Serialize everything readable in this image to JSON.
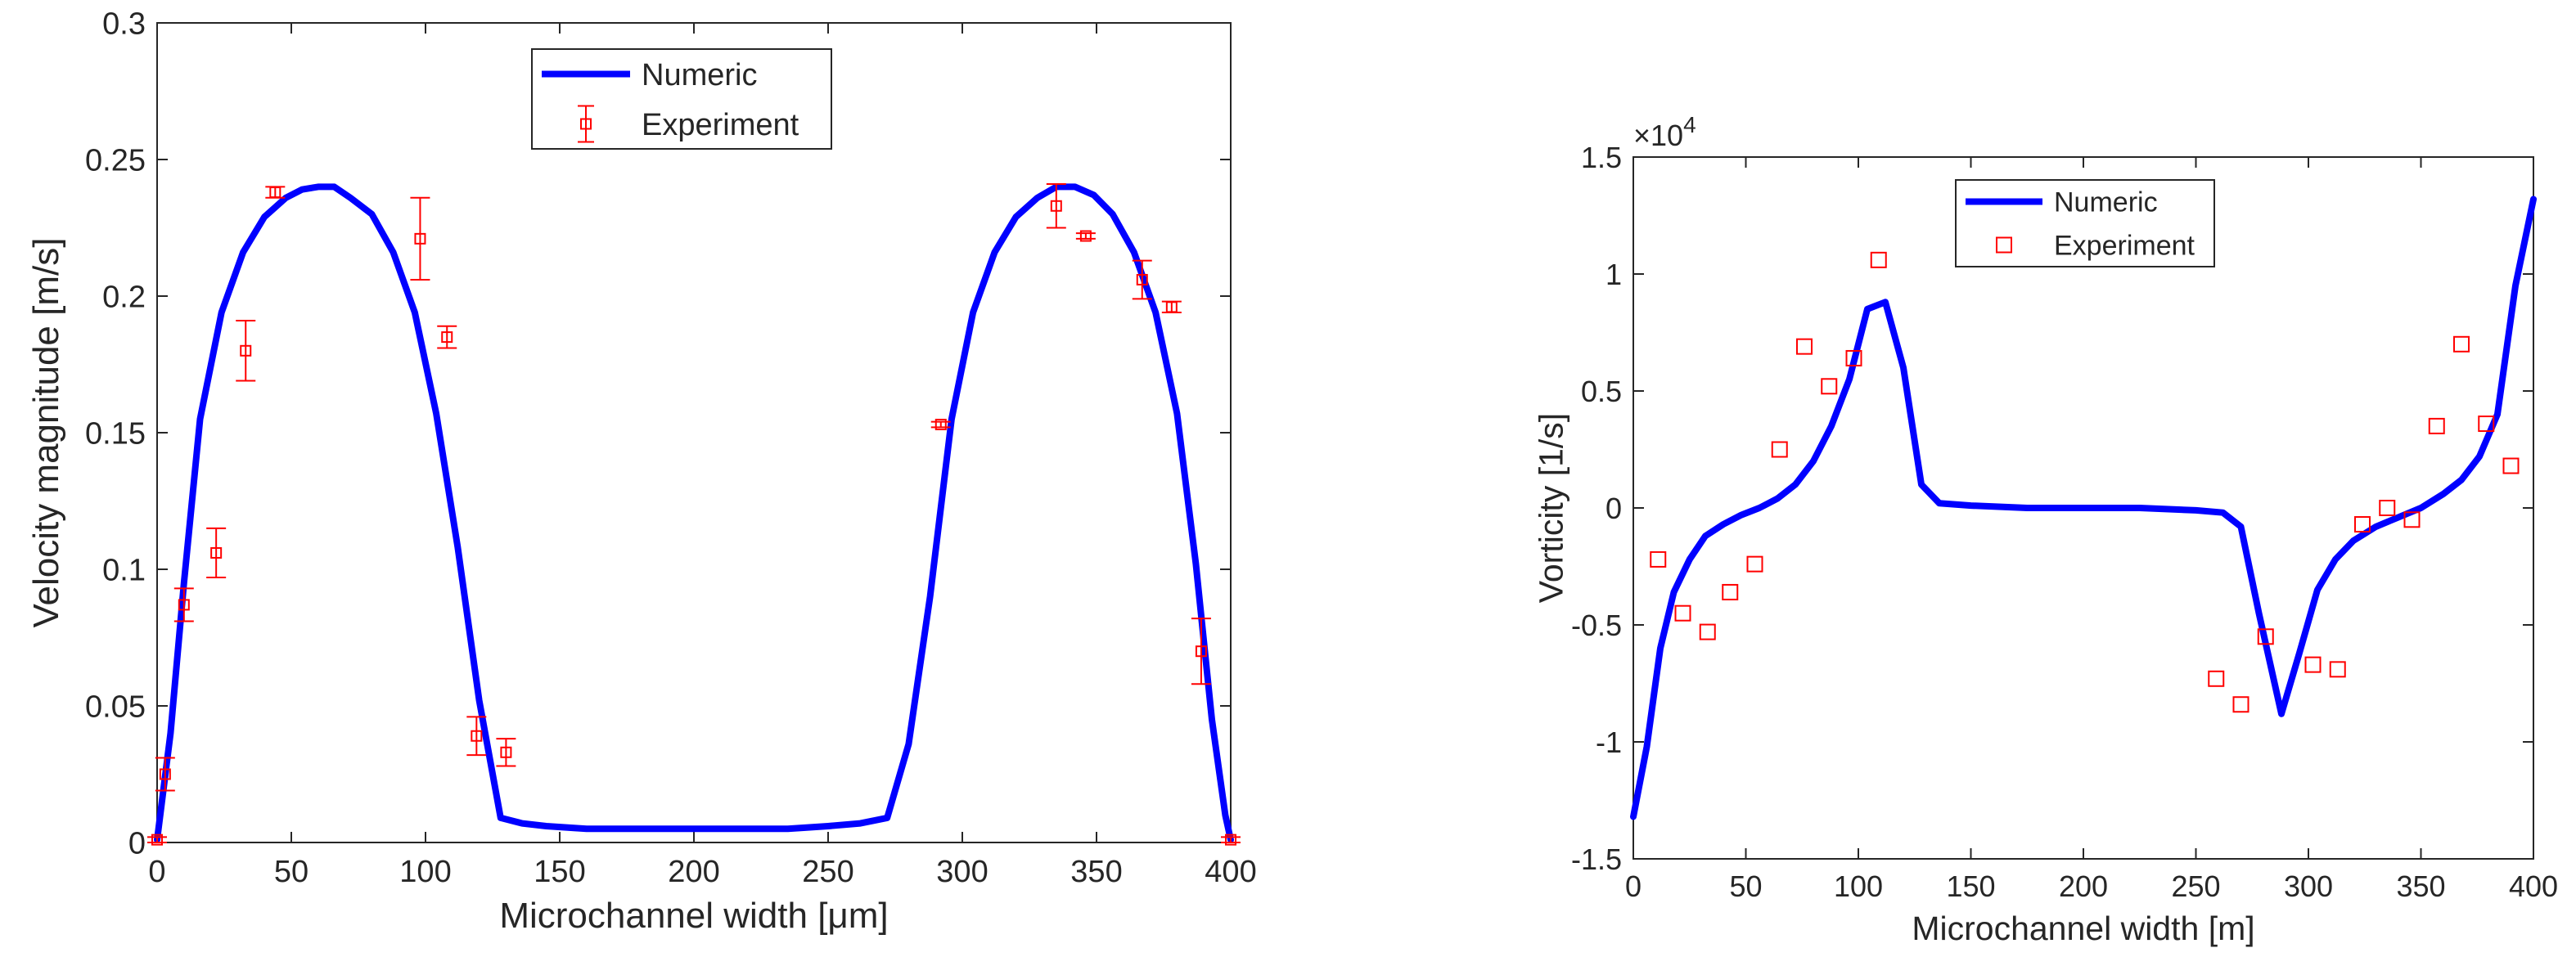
{
  "chart_data": [
    {
      "type": "line",
      "xlabel": "Microchannel width [μm]",
      "ylabel": "Velocity magnitude [m/s]",
      "xlim": [
        0,
        400
      ],
      "ylim": [
        0,
        0.3
      ],
      "xticks": [
        0,
        50,
        100,
        150,
        200,
        250,
        300,
        350,
        400
      ],
      "yticks": [
        0,
        0.05,
        0.1,
        0.15,
        0.2,
        0.25,
        0.3
      ],
      "xtick_labels": [
        "0",
        "50",
        "100",
        "150",
        "200",
        "250",
        "300",
        "350",
        "400"
      ],
      "ytick_labels": [
        "0",
        "0.05",
        "0.1",
        "0.15",
        "0.2",
        "0.25",
        "0.3"
      ],
      "legend": {
        "position": "top-center",
        "entries": [
          "Numeric",
          "Experiment"
        ]
      },
      "series": [
        {
          "name": "Numeric",
          "kind": "line",
          "color": "#0000ff",
          "x": [
            0,
            5,
            10,
            16,
            24,
            32,
            40,
            48,
            54,
            60,
            66,
            72,
            80,
            88,
            96,
            104,
            112,
            120,
            128,
            136,
            145,
            160,
            175,
            190,
            205,
            220,
            235,
            250,
            262,
            272,
            280,
            288,
            296,
            304,
            312,
            320,
            328,
            335,
            342,
            349,
            356,
            364,
            372,
            380,
            387,
            393,
            398,
            400
          ],
          "y": [
            0.001,
            0.04,
            0.095,
            0.155,
            0.194,
            0.216,
            0.229,
            0.236,
            0.239,
            0.24,
            0.24,
            0.236,
            0.23,
            0.216,
            0.194,
            0.157,
            0.108,
            0.052,
            0.009,
            0.007,
            0.006,
            0.005,
            0.005,
            0.005,
            0.005,
            0.005,
            0.005,
            0.006,
            0.007,
            0.009,
            0.036,
            0.09,
            0.155,
            0.194,
            0.216,
            0.229,
            0.236,
            0.24,
            0.24,
            0.237,
            0.23,
            0.216,
            0.194,
            0.157,
            0.102,
            0.045,
            0.01,
            0.001
          ]
        },
        {
          "name": "Experiment",
          "kind": "errorbar",
          "color": "#ff0000",
          "x": [
            0,
            3,
            10,
            22,
            33,
            44,
            98,
            108,
            119,
            130,
            292,
            335,
            346,
            367,
            378,
            389,
            400
          ],
          "y": [
            0.001,
            0.025,
            0.087,
            0.106,
            0.18,
            0.238,
            0.221,
            0.185,
            0.039,
            0.033,
            0.153,
            0.233,
            0.222,
            0.206,
            0.196,
            0.07,
            0.001
          ],
          "err": [
            0.001,
            0.006,
            0.006,
            0.009,
            0.011,
            0.002,
            0.015,
            0.004,
            0.007,
            0.005,
            0.001,
            0.008,
            0.001,
            0.007,
            0.002,
            0.012,
            0.001
          ]
        }
      ]
    },
    {
      "type": "line",
      "xlabel": "Microchannel width [m]",
      "ylabel": "Vorticity [1/s]",
      "xlim": [
        0,
        400
      ],
      "ylim": [
        -1.5,
        1.5
      ],
      "exponent_label": "×10",
      "exponent_power": "4",
      "xticks": [
        0,
        50,
        100,
        150,
        200,
        250,
        300,
        350,
        400
      ],
      "yticks": [
        -1.5,
        -1,
        -0.5,
        0,
        0.5,
        1,
        1.5
      ],
      "xtick_labels": [
        "0",
        "50",
        "100",
        "150",
        "200",
        "250",
        "300",
        "350",
        "400"
      ],
      "ytick_labels": [
        "-1.5",
        "-1",
        "-0.5",
        "0",
        "0.5",
        "1",
        "1.5"
      ],
      "legend": {
        "position": "top-center",
        "entries": [
          "Numeric",
          "Experiment"
        ]
      },
      "series": [
        {
          "name": "Numeric",
          "kind": "line",
          "color": "#0000ff",
          "x": [
            0,
            6,
            12,
            18,
            25,
            32,
            40,
            48,
            56,
            64,
            72,
            80,
            88,
            96,
            104,
            112,
            120,
            128,
            136,
            150,
            175,
            200,
            225,
            250,
            262,
            270,
            278,
            288,
            296,
            304,
            312,
            320,
            330,
            340,
            350,
            360,
            368,
            376,
            384,
            392,
            400
          ],
          "y": [
            -1.32,
            -1.02,
            -0.6,
            -0.36,
            -0.22,
            -0.12,
            -0.07,
            -0.03,
            0.0,
            0.04,
            0.1,
            0.2,
            0.35,
            0.55,
            0.85,
            0.88,
            0.6,
            0.1,
            0.02,
            0.01,
            0.0,
            0.0,
            0.0,
            -0.01,
            -0.02,
            -0.08,
            -0.45,
            -0.88,
            -0.62,
            -0.35,
            -0.22,
            -0.14,
            -0.08,
            -0.04,
            0.0,
            0.06,
            0.12,
            0.22,
            0.4,
            0.95,
            1.32
          ]
        },
        {
          "name": "Experiment",
          "kind": "marker",
          "color": "#ff0000",
          "x": [
            11,
            22,
            33,
            43,
            54,
            65,
            76,
            87,
            98,
            109,
            259,
            270,
            281,
            302,
            313,
            324,
            335,
            346,
            357,
            368,
            379,
            390
          ],
          "y": [
            -0.22,
            -0.45,
            -0.53,
            -0.36,
            -0.24,
            0.25,
            0.69,
            0.52,
            0.64,
            1.06,
            -0.73,
            -0.84,
            -0.55,
            -0.67,
            -0.69,
            -0.07,
            0.0,
            -0.05,
            0.35,
            0.7,
            0.36,
            0.18
          ]
        }
      ]
    }
  ]
}
